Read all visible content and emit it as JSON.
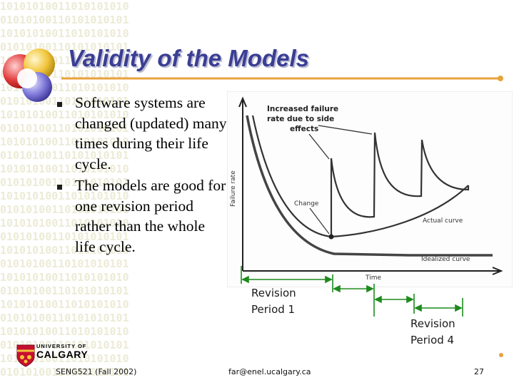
{
  "slide": {
    "title": "Validity of the Models",
    "bullets": [
      "Software systems are changed (updated) many times during their life cycle.",
      "The models are good for one revision period rather than the whole life cycle."
    ],
    "footer": {
      "course": "SENG521 (Fall 2002)",
      "email": "far@enel.ucalgary.ca",
      "page": "27"
    },
    "university": {
      "line1": "UNIVERSITY OF",
      "line2": "CALGARY"
    },
    "background_text": "10101010011010101010\n01010100110101010101\n10101010011010101010\n01010100110101010101\n10101010011010101010\n01010100110101010101\n10101010011010101010\n01010100110101010101\n10101010011010101010\n01010100110101010101\n10101010011010101010\n01010100110101010101\n10101010011010101010\n01010100110101010101\n10101010011010101010\n01010100110101010101\n10101010011010101010\n01010100110101010101\n10101010011010101010\n01010100110101010101\n10101010011010101010\n01010100110101010101\n10101010011010101010\n01010100110101010101\n10101010011010101010\n01010100110101010101\n10101010011010101010\n01010100110101010101"
  },
  "figure": {
    "y_axis_label": "Failure rate",
    "x_axis_label": "Time",
    "annotation": "Increased failure rate due to side effects",
    "change_label": "Change",
    "actual_curve_label": "Actual curve",
    "idealized_curve_label": "Idealized curve"
  },
  "revision_periods": [
    {
      "label_line1": "Revision",
      "label_line2": "Period 1"
    },
    {
      "label_line1": "Revision",
      "label_line2": "Period 4"
    }
  ],
  "colors": {
    "title": "#3a3e94",
    "accent_line": "#e8a23c",
    "period_arrow": "#1e8a1e",
    "binary_bg": "#ecebd6"
  }
}
